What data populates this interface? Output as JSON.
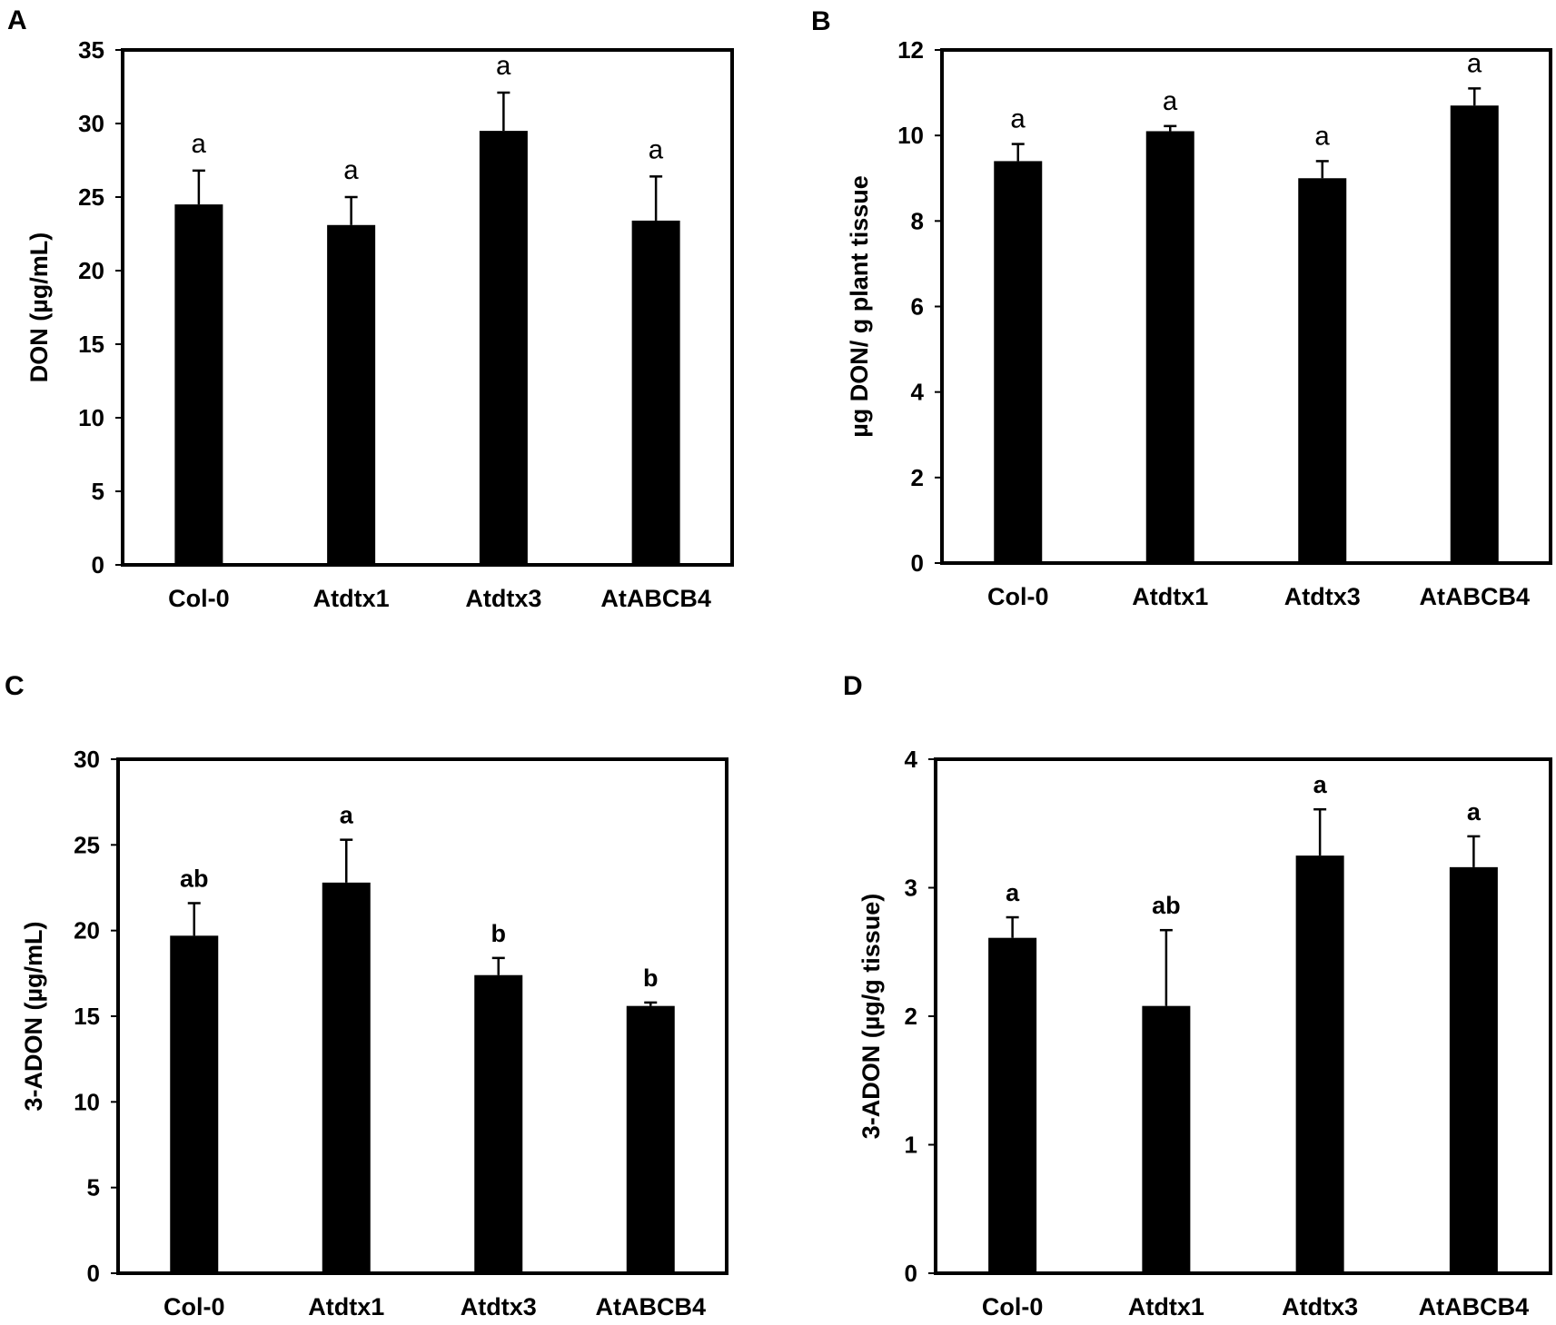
{
  "chart_data": [
    {
      "panel": "A",
      "type": "bar",
      "categories": [
        "Col-0",
        "Atdtx1",
        "Atdtx3",
        "AtABCB4"
      ],
      "values": [
        24.5,
        23.1,
        29.5,
        23.4
      ],
      "errors": [
        2.3,
        1.9,
        2.6,
        3.0
      ],
      "letters": [
        "a",
        "a",
        "a",
        "a"
      ],
      "letter_style": "mono",
      "ylabel": "DON (µg/mL)",
      "ylim": [
        0,
        35
      ],
      "yticks": [
        "0",
        "5",
        "10",
        "15",
        "20",
        "25",
        "30",
        "35"
      ],
      "bar_color": "#000000"
    },
    {
      "panel": "B",
      "type": "bar",
      "categories": [
        "Col-0",
        "Atdtx1",
        "Atdtx3",
        "AtABCB4"
      ],
      "values": [
        9.4,
        10.1,
        9.0,
        10.7
      ],
      "errors": [
        0.4,
        0.12,
        0.4,
        0.4
      ],
      "letters": [
        "a",
        "a",
        "a",
        "a"
      ],
      "letter_style": "mono",
      "ylabel": "µg DON/ g plant tissue",
      "ylim": [
        0,
        12
      ],
      "yticks": [
        "0",
        "2",
        "4",
        "6",
        "8",
        "10",
        "12"
      ],
      "bar_color": "#000000"
    },
    {
      "panel": "C",
      "type": "bar",
      "categories": [
        "Col-0",
        "Atdtx1",
        "Atdtx3",
        "AtABCB4"
      ],
      "values": [
        19.7,
        22.8,
        17.4,
        15.6
      ],
      "errors": [
        1.9,
        2.5,
        1.0,
        0.2
      ],
      "letters": [
        "ab",
        "a",
        "b",
        "b"
      ],
      "letter_style": "bold",
      "ylabel": "3-ADON (µg/mL)",
      "ylim": [
        0,
        30
      ],
      "yticks": [
        "0",
        "5",
        "10",
        "15",
        "20",
        "25",
        "30"
      ],
      "bar_color": "#000000"
    },
    {
      "panel": "D",
      "type": "bar",
      "categories": [
        "Col-0",
        "Atdtx1",
        "Atdtx3",
        "AtABCB4"
      ],
      "values": [
        2.61,
        2.08,
        3.25,
        3.16
      ],
      "errors": [
        0.16,
        0.59,
        0.36,
        0.24
      ],
      "letters": [
        "a",
        "ab",
        "a",
        "a"
      ],
      "letter_style": "bold",
      "ylabel": "3-ADON (µg/g tissue)",
      "ylim": [
        0,
        4
      ],
      "yticks": [
        "0",
        "1",
        "2",
        "3",
        "4"
      ],
      "bar_color": "#000000"
    }
  ]
}
